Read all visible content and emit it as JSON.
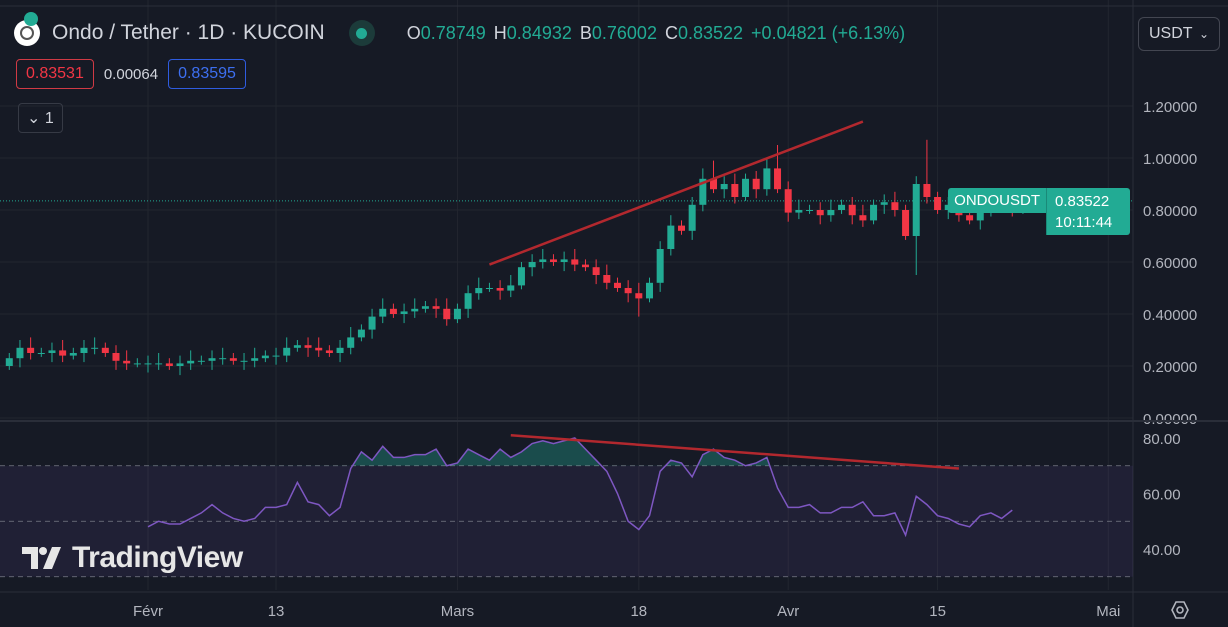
{
  "header": {
    "title": "Ondo / Tether · 1D · KUCOIN",
    "ohlc": [
      {
        "k": "O",
        "v": "0.78749"
      },
      {
        "k": "H",
        "v": "0.84932"
      },
      {
        "k": "B",
        "v": "0.76002"
      },
      {
        "k": "C",
        "v": "0.83522"
      }
    ],
    "change": "+0.04821 (+6.13%)"
  },
  "trade": {
    "sell": "0.83531",
    "spread": "0.00064",
    "buy": "0.83595"
  },
  "indicators_toggle": "1",
  "currency": "USDT",
  "last": {
    "symbol": "ONDOUSDT",
    "price": "0.83522",
    "countdown": "10:11:44"
  },
  "branding": "TradingView",
  "colors": {
    "up": "#22ab94",
    "down": "#f23645",
    "rsi": "#7e57c2",
    "trend": "#b2282e"
  },
  "price_axis": {
    "ticks": [
      "0.00000",
      "0.20000",
      "0.40000",
      "0.60000",
      "0.80000",
      "1.00000",
      "1.20000"
    ],
    "values": [
      0,
      0.2,
      0.4,
      0.6,
      0.8,
      1.0,
      1.2
    ]
  },
  "rsi_axis": {
    "ticks": [
      "40.00",
      "60.00",
      "80.00"
    ],
    "values": [
      40,
      60,
      80
    ],
    "bands": [
      30,
      50,
      70
    ]
  },
  "time_axis": [
    {
      "label": "Févr",
      "i": 13
    },
    {
      "label": "13",
      "i": 25
    },
    {
      "label": "Mars",
      "i": 42
    },
    {
      "label": "18",
      "i": 59
    },
    {
      "label": "Avr",
      "i": 73
    },
    {
      "label": "15",
      "i": 87
    },
    {
      "label": "Mai",
      "i": 103
    }
  ],
  "chart_data": {
    "type": "candlestick",
    "start_open": 0.2,
    "closes": [
      0.23,
      0.27,
      0.25,
      0.25,
      0.26,
      0.24,
      0.25,
      0.27,
      0.27,
      0.25,
      0.22,
      0.21,
      0.21,
      0.21,
      0.21,
      0.2,
      0.21,
      0.22,
      0.22,
      0.23,
      0.23,
      0.22,
      0.22,
      0.23,
      0.24,
      0.24,
      0.27,
      0.28,
      0.27,
      0.26,
      0.25,
      0.27,
      0.31,
      0.34,
      0.39,
      0.42,
      0.4,
      0.41,
      0.42,
      0.43,
      0.42,
      0.38,
      0.42,
      0.48,
      0.5,
      0.5,
      0.49,
      0.51,
      0.58,
      0.6,
      0.61,
      0.6,
      0.61,
      0.59,
      0.58,
      0.55,
      0.52,
      0.5,
      0.48,
      0.46,
      0.52,
      0.65,
      0.74,
      0.72,
      0.82,
      0.92,
      0.88,
      0.9,
      0.85,
      0.92,
      0.88,
      0.96,
      0.88,
      0.79,
      0.8,
      0.8,
      0.78,
      0.8,
      0.82,
      0.78,
      0.76,
      0.82,
      0.83,
      0.8,
      0.7,
      0.9,
      0.85,
      0.8,
      0.82,
      0.78,
      0.76,
      0.8,
      0.82,
      0.83,
      0.81,
      0.835
    ],
    "high_overrides": {
      "72": 1.05,
      "86": 1.07,
      "66": 0.99,
      "2": 0.31
    },
    "low_overrides": {
      "85": 0.55,
      "59": 0.39
    },
    "rsi_start_index": 13,
    "rsi": [
      48,
      50,
      49,
      49,
      51,
      53,
      56,
      53,
      51,
      50,
      51,
      55,
      55,
      56,
      64,
      57,
      56,
      52,
      55,
      69,
      75,
      72,
      77,
      73,
      73,
      74,
      74,
      76,
      70,
      71,
      76,
      74,
      72,
      76,
      73,
      75,
      78,
      79,
      78,
      79,
      80,
      76,
      72,
      68,
      60,
      50,
      47,
      52,
      68,
      72,
      71,
      66,
      74,
      76,
      73,
      72,
      70,
      71,
      73,
      62,
      55,
      55,
      56,
      53,
      53,
      55,
      55,
      57,
      52,
      52,
      53,
      45,
      59,
      56,
      52,
      51,
      49,
      48,
      52,
      53,
      51,
      54
    ],
    "price_trendline": [
      {
        "i": 45,
        "p": 0.59
      },
      {
        "i": 80,
        "p": 1.14
      }
    ],
    "rsi_trendline": [
      {
        "i": 47,
        "v": 81
      },
      {
        "i": 89,
        "v": 69
      }
    ]
  }
}
